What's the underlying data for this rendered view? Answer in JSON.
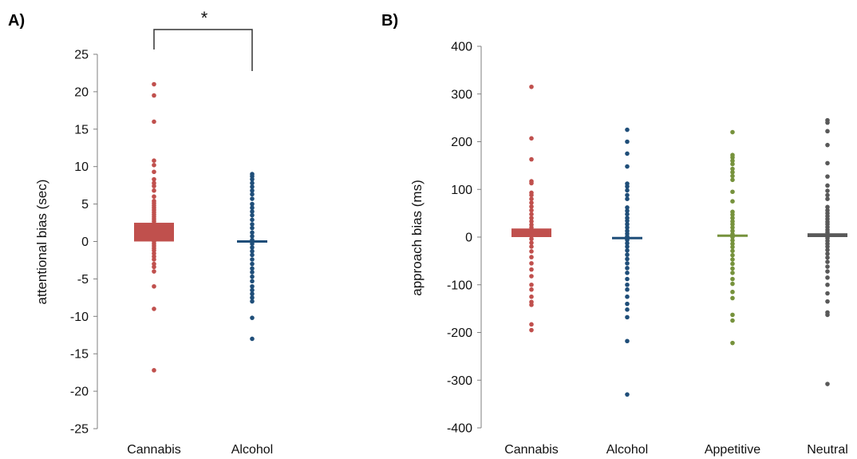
{
  "chart_data": [
    {
      "type": "scatter",
      "panel_label": "A)",
      "title": "",
      "xlabel": "",
      "ylabel": "attentional bias (sec)",
      "ylim": [
        -25,
        25
      ],
      "yticks": [
        25,
        20,
        15,
        10,
        5,
        0,
        -5,
        -10,
        -15,
        -20,
        -25
      ],
      "grid": false,
      "categories": [
        "Cannabis",
        "Alcohol"
      ],
      "significance": {
        "between": [
          "Cannabis",
          "Alcohol"
        ],
        "label": "*"
      },
      "series": [
        {
          "category": "Cannabis",
          "color": "#c0504d",
          "mean": 1.2,
          "ci": [
            0,
            2.5
          ],
          "points": [
            21,
            19.5,
            16,
            10.8,
            10.2,
            9.3,
            8.3,
            7.8,
            7.4,
            6.8,
            6,
            5.4,
            5.1,
            4.8,
            4.5,
            4.2,
            3.9,
            3.6,
            3.3,
            3,
            2.7,
            2.4,
            2.1,
            1.8,
            1.5,
            1.2,
            0.9,
            0.6,
            0.3,
            0,
            -0.3,
            -0.6,
            -0.9,
            -1.2,
            -1.6,
            -2,
            -2.4,
            -3,
            -3.4,
            -4,
            -6,
            -9,
            -17.2
          ]
        },
        {
          "category": "Alcohol",
          "color": "#1f4e79",
          "mean": 0,
          "ci": [
            0,
            0
          ],
          "points": [
            9,
            8.7,
            8.3,
            7.8,
            7.3,
            6.8,
            6.3,
            5.7,
            5,
            4.5,
            4,
            3.5,
            2.9,
            2.3,
            1.8,
            1.2,
            0.7,
            0.2,
            -0.3,
            -0.8,
            -1.3,
            -1.8,
            -2.4,
            -3,
            -3.6,
            -4.1,
            -4.7,
            -5.3,
            -6,
            -6.5,
            -7,
            -7.5,
            -8,
            -10.2,
            -13
          ]
        }
      ]
    },
    {
      "type": "scatter",
      "panel_label": "B)",
      "title": "",
      "xlabel": "",
      "ylabel": "approach bias (ms)",
      "ylim": [
        -400,
        400
      ],
      "yticks": [
        400,
        300,
        200,
        100,
        0,
        -100,
        -200,
        -300,
        -400
      ],
      "grid": false,
      "categories": [
        "Cannabis",
        "Alcohol",
        "Appetitive",
        "Neutral"
      ],
      "series": [
        {
          "category": "Cannabis",
          "color": "#c0504d",
          "mean": 8,
          "ci": [
            0,
            18
          ],
          "points": [
            315,
            207,
            163,
            117,
            113,
            93,
            88,
            80,
            72,
            64,
            56,
            48,
            40,
            33,
            26,
            20,
            13,
            7,
            2,
            -4,
            -12,
            -20,
            -30,
            -42,
            -55,
            -68,
            -82,
            -100,
            -110,
            -125,
            -136,
            -142,
            -183,
            -195
          ]
        },
        {
          "category": "Alcohol",
          "color": "#1f4e79",
          "mean": -2,
          "ci": [
            -4,
            0
          ],
          "points": [
            225,
            200,
            175,
            148,
            112,
            106,
            98,
            88,
            80,
            62,
            55,
            48,
            40,
            34,
            27,
            20,
            13,
            7,
            1,
            -6,
            -13,
            -20,
            -28,
            -37,
            -46,
            -55,
            -65,
            -75,
            -88,
            -100,
            -110,
            -125,
            -140,
            -152,
            -168,
            -218,
            -330
          ]
        },
        {
          "category": "Appetitive",
          "color": "#76923c",
          "mean": 3,
          "ci": [
            0,
            5
          ],
          "points": [
            220,
            172,
            167,
            160,
            153,
            143,
            136,
            128,
            120,
            95,
            75,
            53,
            47,
            40,
            33,
            27,
            20,
            13,
            6,
            0,
            -7,
            -14,
            -21,
            -29,
            -38,
            -47,
            -56,
            -66,
            -75,
            -88,
            -98,
            -115,
            -128,
            -163,
            -175,
            -222
          ]
        },
        {
          "category": "Neutral",
          "color": "#595959",
          "mean": 5,
          "ci": [
            0,
            8
          ],
          "points": [
            245,
            240,
            222,
            193,
            155,
            127,
            108,
            97,
            88,
            80,
            63,
            56,
            50,
            44,
            38,
            32,
            27,
            21,
            15,
            10,
            4,
            -2,
            -8,
            -14,
            -20,
            -27,
            -35,
            -43,
            -52,
            -62,
            -72,
            -85,
            -100,
            -118,
            -135,
            -158,
            -163,
            -308
          ]
        }
      ]
    }
  ]
}
